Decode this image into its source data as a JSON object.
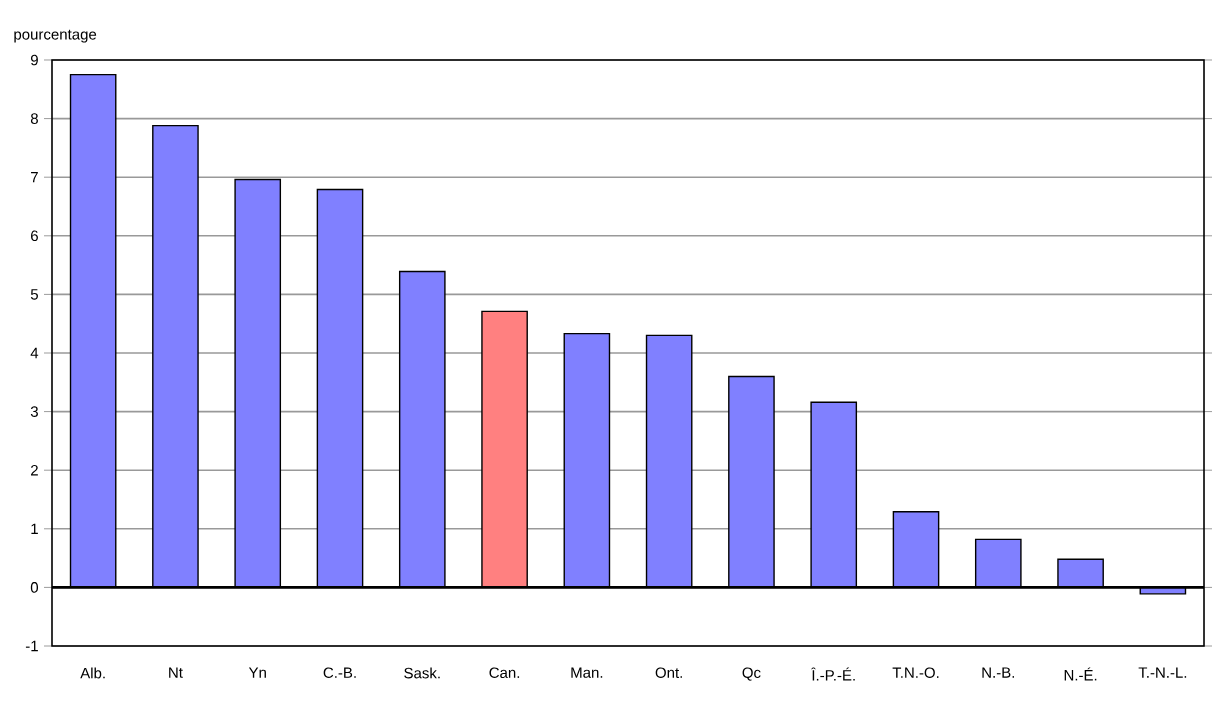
{
  "chart_data": {
    "type": "bar",
    "ylabel": "pourcentage",
    "categories": [
      "Alb.",
      "Nt",
      "Yn",
      "C.-B.",
      "Sask.",
      "Can.",
      "Man.",
      "Ont.",
      "Qc",
      "Î.-P.-É.",
      "T.N.-O.",
      "N.-B.",
      "N.-É.",
      "T.-N.-L."
    ],
    "values": [
      8.75,
      7.88,
      6.96,
      6.79,
      5.39,
      4.71,
      4.33,
      4.3,
      3.6,
      3.16,
      1.29,
      0.82,
      0.48,
      -0.11
    ],
    "colors": [
      "#8080ff",
      "#8080ff",
      "#8080ff",
      "#8080ff",
      "#8080ff",
      "#ff8080",
      "#8080ff",
      "#8080ff",
      "#8080ff",
      "#8080ff",
      "#8080ff",
      "#8080ff",
      "#8080ff",
      "#8080ff"
    ],
    "ylim": [
      -1,
      9
    ],
    "yticks": [
      -1,
      0,
      1,
      2,
      3,
      4,
      5,
      6,
      7,
      8,
      9
    ],
    "grid": "y"
  }
}
